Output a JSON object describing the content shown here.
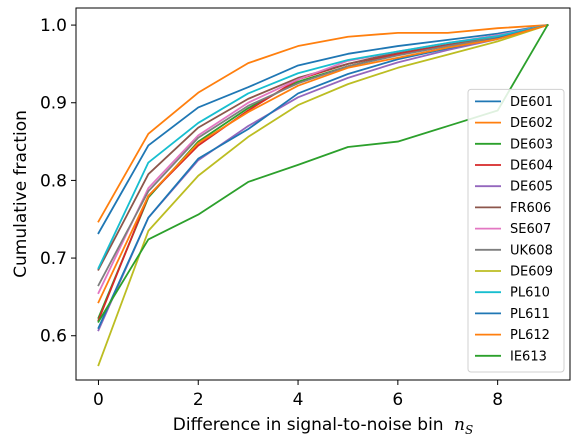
{
  "chart_data": {
    "type": "line",
    "title": "",
    "xlabel": "Difference in signal-to-noise bin",
    "xlabel_math": "n",
    "xlabel_math_sub": "S",
    "ylabel": "Cumulative fraction",
    "xlim": [
      -0.45,
      9.45
    ],
    "ylim": [
      0.543,
      1.022
    ],
    "xticks": [
      0,
      2,
      4,
      6,
      8
    ],
    "xtick_labels": [
      "0",
      "2",
      "4",
      "6",
      "8"
    ],
    "yticks": [
      0.6,
      0.7,
      0.8,
      0.9,
      1.0
    ],
    "ytick_labels": [
      "0.6",
      "0.7",
      "0.8",
      "0.9",
      "1.0"
    ],
    "grid": false,
    "legend_position": "lower-right",
    "x": [
      0,
      1,
      2,
      3,
      4,
      5,
      6,
      7,
      8,
      9
    ],
    "series": [
      {
        "name": "DE601",
        "color": "#1f77b4",
        "values": [
          0.732,
          0.845,
          0.894,
          0.92,
          0.948,
          0.963,
          0.973,
          0.981,
          0.989,
          1.0
        ]
      },
      {
        "name": "DE602",
        "color": "#ff7f0e",
        "values": [
          0.747,
          0.86,
          0.913,
          0.951,
          0.973,
          0.985,
          0.99,
          0.99,
          0.996,
          1.0
        ]
      },
      {
        "name": "DE603",
        "color": "#2ca02c",
        "values": [
          0.623,
          0.778,
          0.85,
          0.893,
          0.927,
          0.947,
          0.962,
          0.973,
          0.983,
          1.0
        ]
      },
      {
        "name": "DE604",
        "color": "#d62728",
        "values": [
          0.62,
          0.78,
          0.845,
          0.89,
          0.93,
          0.95,
          0.963,
          0.975,
          0.985,
          1.0
        ]
      },
      {
        "name": "DE605",
        "color": "#9467bd",
        "values": [
          0.607,
          0.752,
          0.826,
          0.87,
          0.907,
          0.932,
          0.952,
          0.968,
          0.982,
          1.0
        ]
      },
      {
        "name": "FR606",
        "color": "#8c564b",
        "values": [
          0.685,
          0.808,
          0.868,
          0.905,
          0.932,
          0.95,
          0.965,
          0.976,
          0.985,
          1.0
        ]
      },
      {
        "name": "SE607",
        "color": "#e377c2",
        "values": [
          0.655,
          0.79,
          0.858,
          0.9,
          0.93,
          0.954,
          0.966,
          0.977,
          0.987,
          1.0
        ]
      },
      {
        "name": "UK608",
        "color": "#7f7f7f",
        "values": [
          0.665,
          0.786,
          0.855,
          0.896,
          0.925,
          0.947,
          0.961,
          0.973,
          0.984,
          1.0
        ]
      },
      {
        "name": "DE609",
        "color": "#bcbd22",
        "values": [
          0.562,
          0.735,
          0.806,
          0.856,
          0.897,
          0.924,
          0.945,
          0.962,
          0.979,
          1.0
        ]
      },
      {
        "name": "PL610",
        "color": "#17becf",
        "values": [
          0.687,
          0.823,
          0.874,
          0.912,
          0.938,
          0.955,
          0.966,
          0.977,
          0.986,
          1.0
        ]
      },
      {
        "name": "PL611",
        "color": "#1f77b4",
        "values": [
          0.61,
          0.752,
          0.828,
          0.866,
          0.912,
          0.937,
          0.956,
          0.97,
          0.983,
          1.0
        ]
      },
      {
        "name": "PL612",
        "color": "#ff7f0e",
        "values": [
          0.643,
          0.78,
          0.848,
          0.888,
          0.922,
          0.945,
          0.958,
          0.971,
          0.982,
          1.0
        ]
      },
      {
        "name": "IE613",
        "color": "#2ca02c",
        "values": [
          0.618,
          0.724,
          0.756,
          0.798,
          0.82,
          0.843,
          0.85,
          0.87,
          0.89,
          1.0
        ]
      }
    ]
  }
}
